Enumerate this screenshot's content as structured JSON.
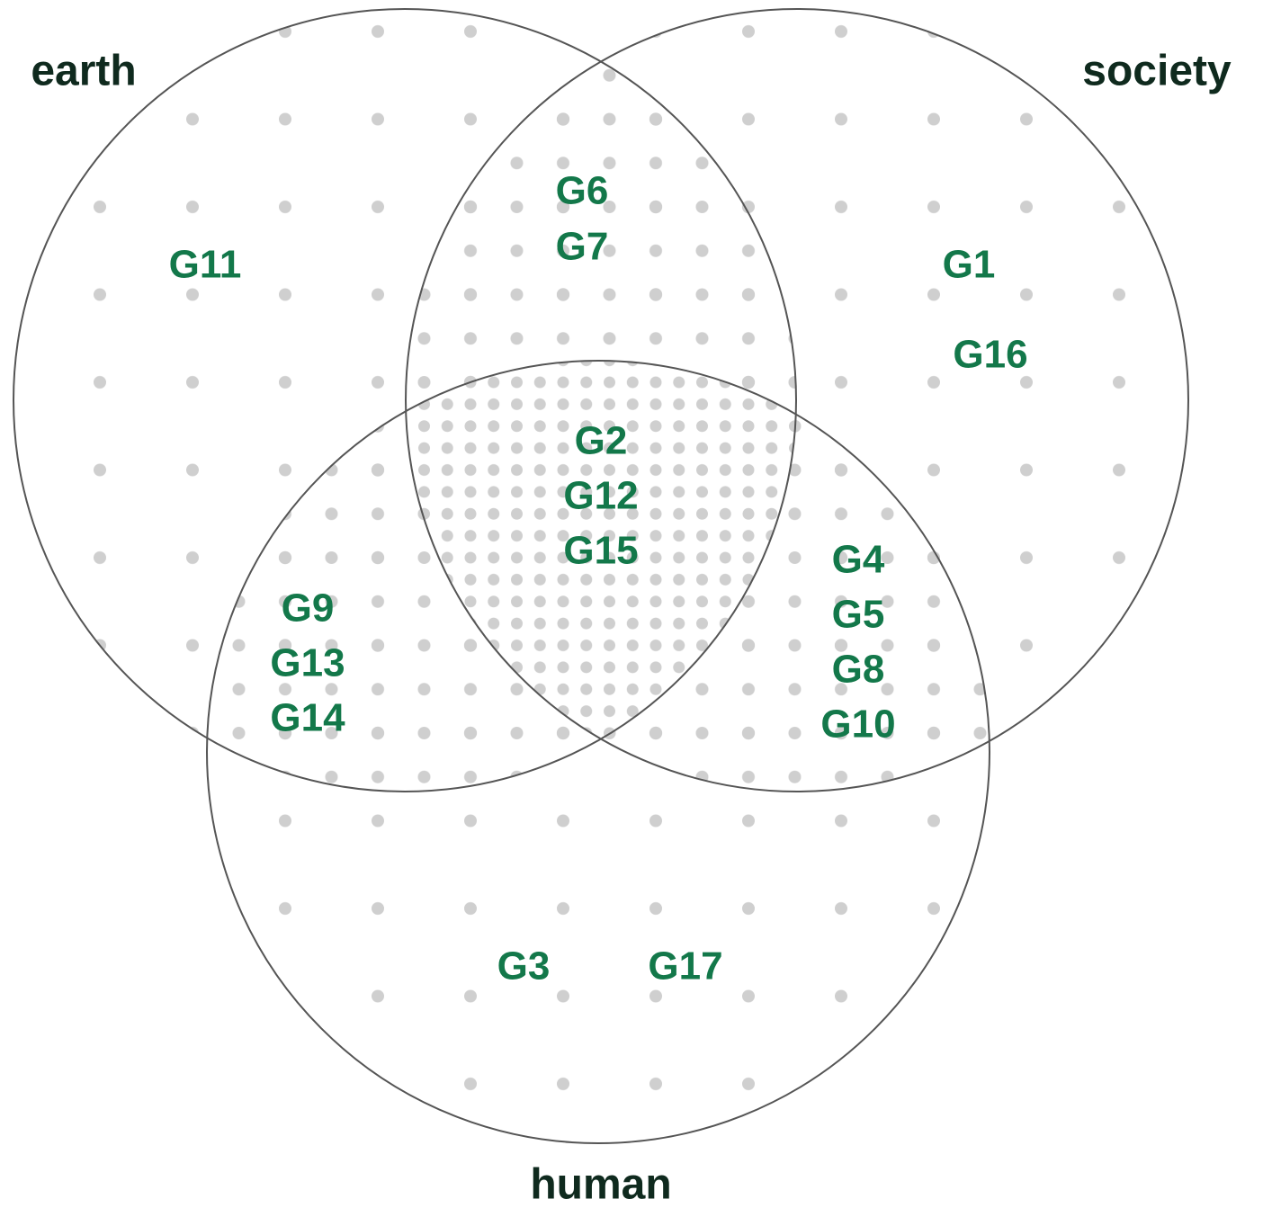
{
  "sets": [
    {
      "label": "earth"
    },
    {
      "label": "society"
    },
    {
      "label": "human"
    }
  ],
  "regions": [
    {
      "items": [
        "G11"
      ]
    },
    {
      "items": [
        "G1",
        "G16"
      ]
    },
    {
      "items": [
        "G3",
        "G17"
      ]
    },
    {
      "items": [
        "G6",
        "G7"
      ]
    },
    {
      "items": [
        "G9",
        "G13",
        "G14"
      ]
    },
    {
      "items": [
        "G4",
        "G5",
        "G8",
        "G10"
      ]
    },
    {
      "items": [
        "G2",
        "G12",
        "G15"
      ]
    }
  ]
}
